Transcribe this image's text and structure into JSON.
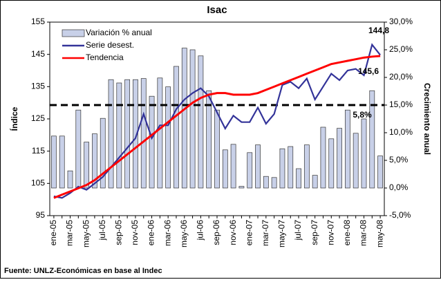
{
  "chart_data": {
    "type": "bar_line",
    "title": "Isac",
    "y_label": "Índice",
    "y2_label": "Crecimiento anual",
    "footer": "Fuente: UNLZ-Económicas en base al Indec",
    "categories": [
      "ene-05",
      null,
      "mar-05",
      null,
      "may-05",
      null,
      "jul-05",
      null,
      "sep-05",
      null,
      "nov-05",
      null,
      "ene-06",
      null,
      "mar-06",
      null,
      "may-06",
      null,
      "jul-06",
      null,
      "sep-06",
      null,
      "nov-06",
      null,
      "ene-07",
      null,
      "mar-07",
      null,
      "may-07",
      null,
      "jul-07",
      null,
      "sep-07",
      null,
      "nov-07",
      null,
      "ene-08",
      null,
      "mar-08",
      null,
      "may-08"
    ],
    "series": [
      {
        "name": "Variación % anual",
        "kind": "bar",
        "axis": "y2",
        "color": "#c8d0e8",
        "values": [
          9.4,
          9.4,
          3.1,
          14.1,
          8.3,
          9.8,
          12.6,
          19.6,
          19.0,
          19.6,
          19.6,
          19.8,
          16.6,
          19.9,
          18.3,
          22.0,
          25.3,
          25.0,
          23.9,
          17.6,
          14.1,
          6.9,
          7.9,
          0.3,
          6.4,
          7.8,
          2.1,
          1.9,
          7.1,
          7.5,
          3.5,
          7.8,
          2.3,
          11.0,
          8.9,
          10.8,
          14.1,
          9.9,
          12.5,
          17.6,
          5.8
        ]
      },
      {
        "name": "Serie desest.",
        "kind": "line",
        "color": "#333399",
        "values": [
          101,
          100.5,
          102,
          104,
          103,
          105,
          107,
          110,
          113,
          116,
          119,
          126.5,
          119,
          123,
          123,
          128,
          131,
          133,
          134.5,
          132,
          127,
          122,
          126,
          124,
          124,
          128.5,
          123.5,
          126.5,
          135.5,
          136.5,
          134.5,
          137.5,
          131,
          135,
          139,
          137,
          140,
          140.5,
          138.5,
          148,
          144.8
        ]
      },
      {
        "name": "Tendencia",
        "kind": "line",
        "color": "#ff0000",
        "values": [
          100.5,
          101.5,
          102.5,
          103.5,
          104.5,
          106,
          108,
          110,
          112,
          114,
          116,
          118,
          120,
          122,
          124,
          126,
          128,
          130,
          131.5,
          132.5,
          133,
          133,
          132.5,
          132.5,
          132.5,
          133,
          134,
          135,
          136,
          137,
          138,
          139,
          140,
          141,
          142,
          142.5,
          143,
          143.5,
          144,
          144.3,
          144.5
        ]
      }
    ],
    "ylim": [
      95,
      155
    ],
    "yticks": [
      95,
      105,
      115,
      125,
      135,
      145,
      155
    ],
    "y2lim": [
      -5,
      30
    ],
    "y2ticks": [
      {
        "value": -5,
        "label": "-5,0%"
      },
      {
        "value": 0,
        "label": "0,0%"
      },
      {
        "value": 5,
        "label": "5,0%"
      },
      {
        "value": 10,
        "label": "10,0%"
      },
      {
        "value": 15,
        "label": "15,0%"
      },
      {
        "value": 20,
        "label": "20,0%"
      },
      {
        "value": 25,
        "label": "25,0%"
      },
      {
        "value": 30,
        "label": "30,0%"
      }
    ],
    "reference_line": {
      "axis": "y2",
      "value": 15
    },
    "annotations": [
      "144,8",
      "145,6",
      "5,8%"
    ],
    "legend": "upper left"
  }
}
